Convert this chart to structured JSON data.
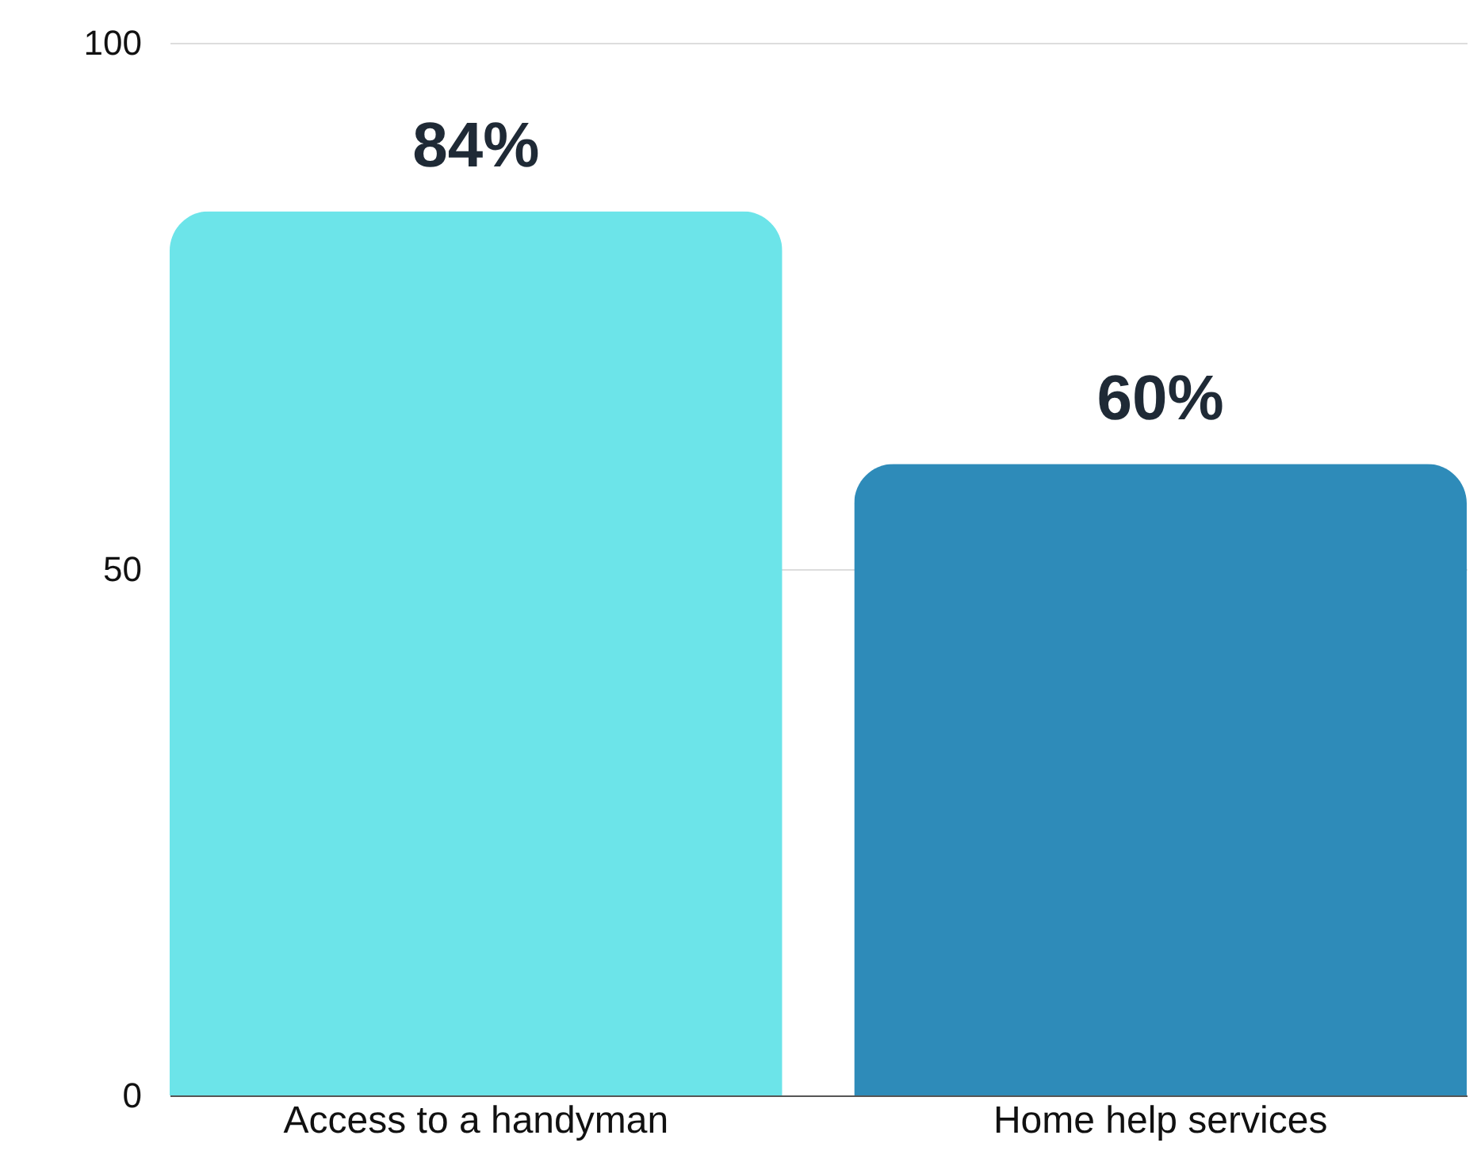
{
  "chart_data": {
    "type": "bar",
    "categories": [
      "Access to a handyman",
      "Home help services"
    ],
    "values": [
      84,
      60
    ],
    "colors": [
      "#6ce4e9",
      "#2e8bb9"
    ],
    "value_labels": [
      "84%",
      "60%"
    ],
    "ylim": [
      0,
      100
    ],
    "yticks": [
      0,
      50,
      100
    ],
    "grid": "y"
  }
}
